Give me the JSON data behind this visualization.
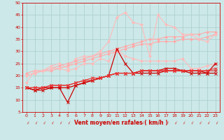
{
  "x": [
    0,
    1,
    2,
    3,
    4,
    5,
    6,
    7,
    8,
    9,
    10,
    11,
    12,
    13,
    14,
    15,
    16,
    17,
    18,
    19,
    20,
    21,
    22,
    23
  ],
  "series": [
    {
      "color": "#ffaaaa",
      "lw": 0.8,
      "marker": "D",
      "ms": 1.8,
      "y": [
        21,
        22,
        22,
        23,
        24,
        25,
        26,
        27,
        28,
        29,
        30,
        31,
        32,
        33,
        34,
        35,
        35,
        36,
        36,
        36,
        37,
        37,
        38,
        38
      ]
    },
    {
      "color": "#ffaaaa",
      "lw": 0.8,
      "marker": "D",
      "ms": 1.8,
      "y": [
        20,
        21,
        22,
        22,
        23,
        24,
        25,
        26,
        27,
        28,
        29,
        30,
        31,
        32,
        33,
        33,
        34,
        34,
        34,
        35,
        35,
        35,
        36,
        37
      ]
    },
    {
      "color": "#ffbbbb",
      "lw": 0.8,
      "marker": "D",
      "ms": 1.8,
      "y": [
        17,
        22,
        22,
        24,
        25,
        23,
        27,
        28,
        28,
        30,
        34,
        44,
        46,
        42,
        41,
        28,
        45,
        41,
        40,
        37,
        37,
        35,
        34,
        37
      ]
    },
    {
      "color": "#ffbbbb",
      "lw": 0.8,
      "marker": "D",
      "ms": 1.8,
      "y": [
        20,
        21,
        22,
        23,
        23,
        22,
        23,
        25,
        25,
        27,
        26,
        31,
        28,
        27,
        26,
        26,
        26,
        26,
        26,
        27,
        23,
        23,
        24,
        25
      ]
    },
    {
      "color": "#cc0000",
      "lw": 0.9,
      "marker": "x",
      "ms": 2.5,
      "y": [
        15,
        14,
        15,
        15,
        15,
        9,
        16,
        17,
        18,
        19,
        20,
        31,
        25,
        21,
        22,
        22,
        22,
        23,
        23,
        22,
        22,
        22,
        21,
        25
      ]
    },
    {
      "color": "#cc0000",
      "lw": 0.9,
      "marker": "x",
      "ms": 2.5,
      "y": [
        15,
        14,
        14,
        15,
        15,
        15,
        16,
        17,
        18,
        19,
        20,
        21,
        21,
        21,
        21,
        21,
        21,
        22,
        22,
        22,
        21,
        21,
        21,
        21
      ]
    },
    {
      "color": "#dd2222",
      "lw": 0.8,
      "marker": "x",
      "ms": 2.2,
      "y": [
        15,
        15,
        15,
        16,
        16,
        16,
        17,
        18,
        18,
        19,
        20,
        21,
        21,
        21,
        22,
        22,
        22,
        22,
        22,
        22,
        22,
        22,
        22,
        22
      ]
    },
    {
      "color": "#ee3333",
      "lw": 0.8,
      "marker": "x",
      "ms": 2.2,
      "y": [
        15,
        15,
        15,
        16,
        16,
        16,
        17,
        18,
        19,
        19,
        20,
        21,
        21,
        21,
        22,
        22,
        22,
        22,
        22,
        22,
        22,
        22,
        22,
        23
      ]
    }
  ],
  "xlabel": "Vent moyen/en rafales ( km/h )",
  "xlim": [
    -0.5,
    23.5
  ],
  "ylim": [
    5,
    50
  ],
  "yticks": [
    5,
    10,
    15,
    20,
    25,
    30,
    35,
    40,
    45,
    50
  ],
  "xticks": [
    0,
    1,
    2,
    3,
    4,
    5,
    6,
    7,
    8,
    9,
    10,
    11,
    12,
    13,
    14,
    15,
    16,
    17,
    18,
    19,
    20,
    21,
    22,
    23
  ],
  "bg_color": "#cce8e8",
  "grid_color": "#aacccc",
  "xlabel_color": "#cc0000",
  "tick_color": "#cc0000",
  "arrow_color": "#cc7777",
  "spine_color": "#cc0000"
}
